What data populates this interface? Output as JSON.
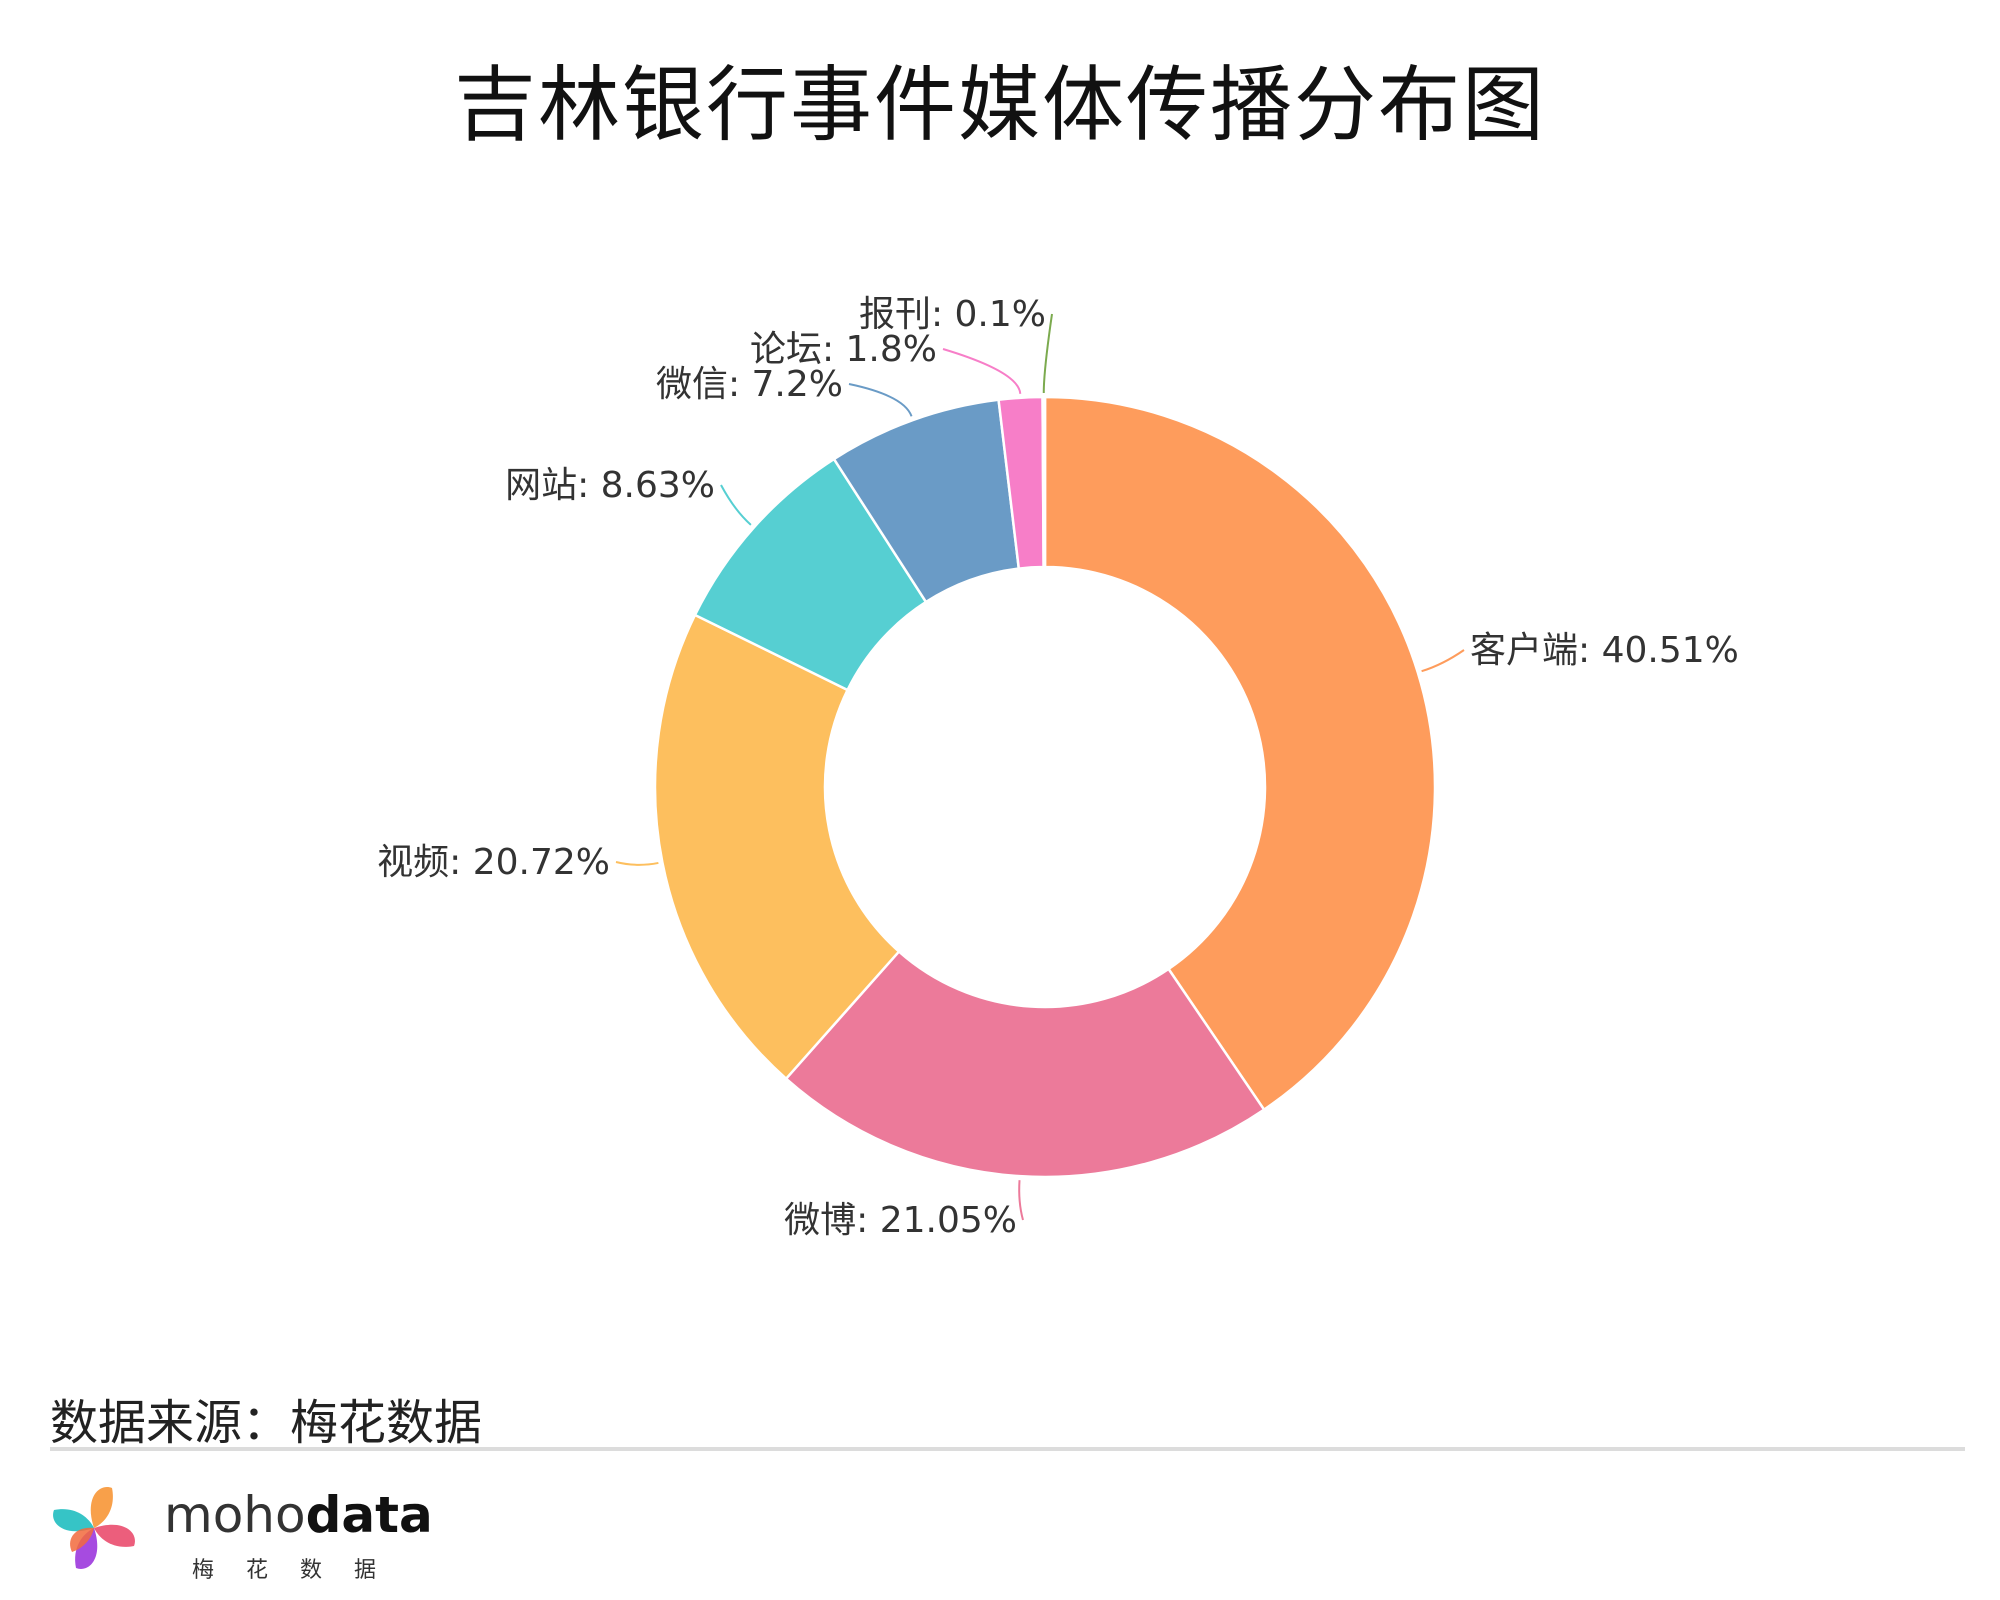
{
  "title": "吉林银行事件媒体传播分布图",
  "source_text": "数据来源：梅花数据",
  "logo": {
    "brand_light": "moho",
    "brand_bold": "data",
    "sub": "梅花数据"
  },
  "chart_data": {
    "type": "pie",
    "donut": true,
    "title": "吉林银行事件媒体传播分布图",
    "slices": [
      {
        "label": "客户端",
        "value": 40.51,
        "display": "客户端: 40.51%",
        "color": "#FE9C5C"
      },
      {
        "label": "微博",
        "value": 21.05,
        "display": "微博: 21.05%",
        "color": "#EC7A9A"
      },
      {
        "label": "视频",
        "value": 20.72,
        "display": "视频: 20.72%",
        "color": "#FDBF5E"
      },
      {
        "label": "网站",
        "value": 8.63,
        "display": "网站: 8.63%",
        "color": "#56CFD2"
      },
      {
        "label": "微信",
        "value": 7.2,
        "display": "微信: 7.2%",
        "color": "#6A9BC6"
      },
      {
        "label": "论坛",
        "value": 1.8,
        "display": "论坛: 1.8%",
        "color": "#F77EC8"
      },
      {
        "label": "报刊",
        "value": 0.1,
        "display": "报刊: 0.1%",
        "color": "#7BAA4E"
      }
    ]
  }
}
